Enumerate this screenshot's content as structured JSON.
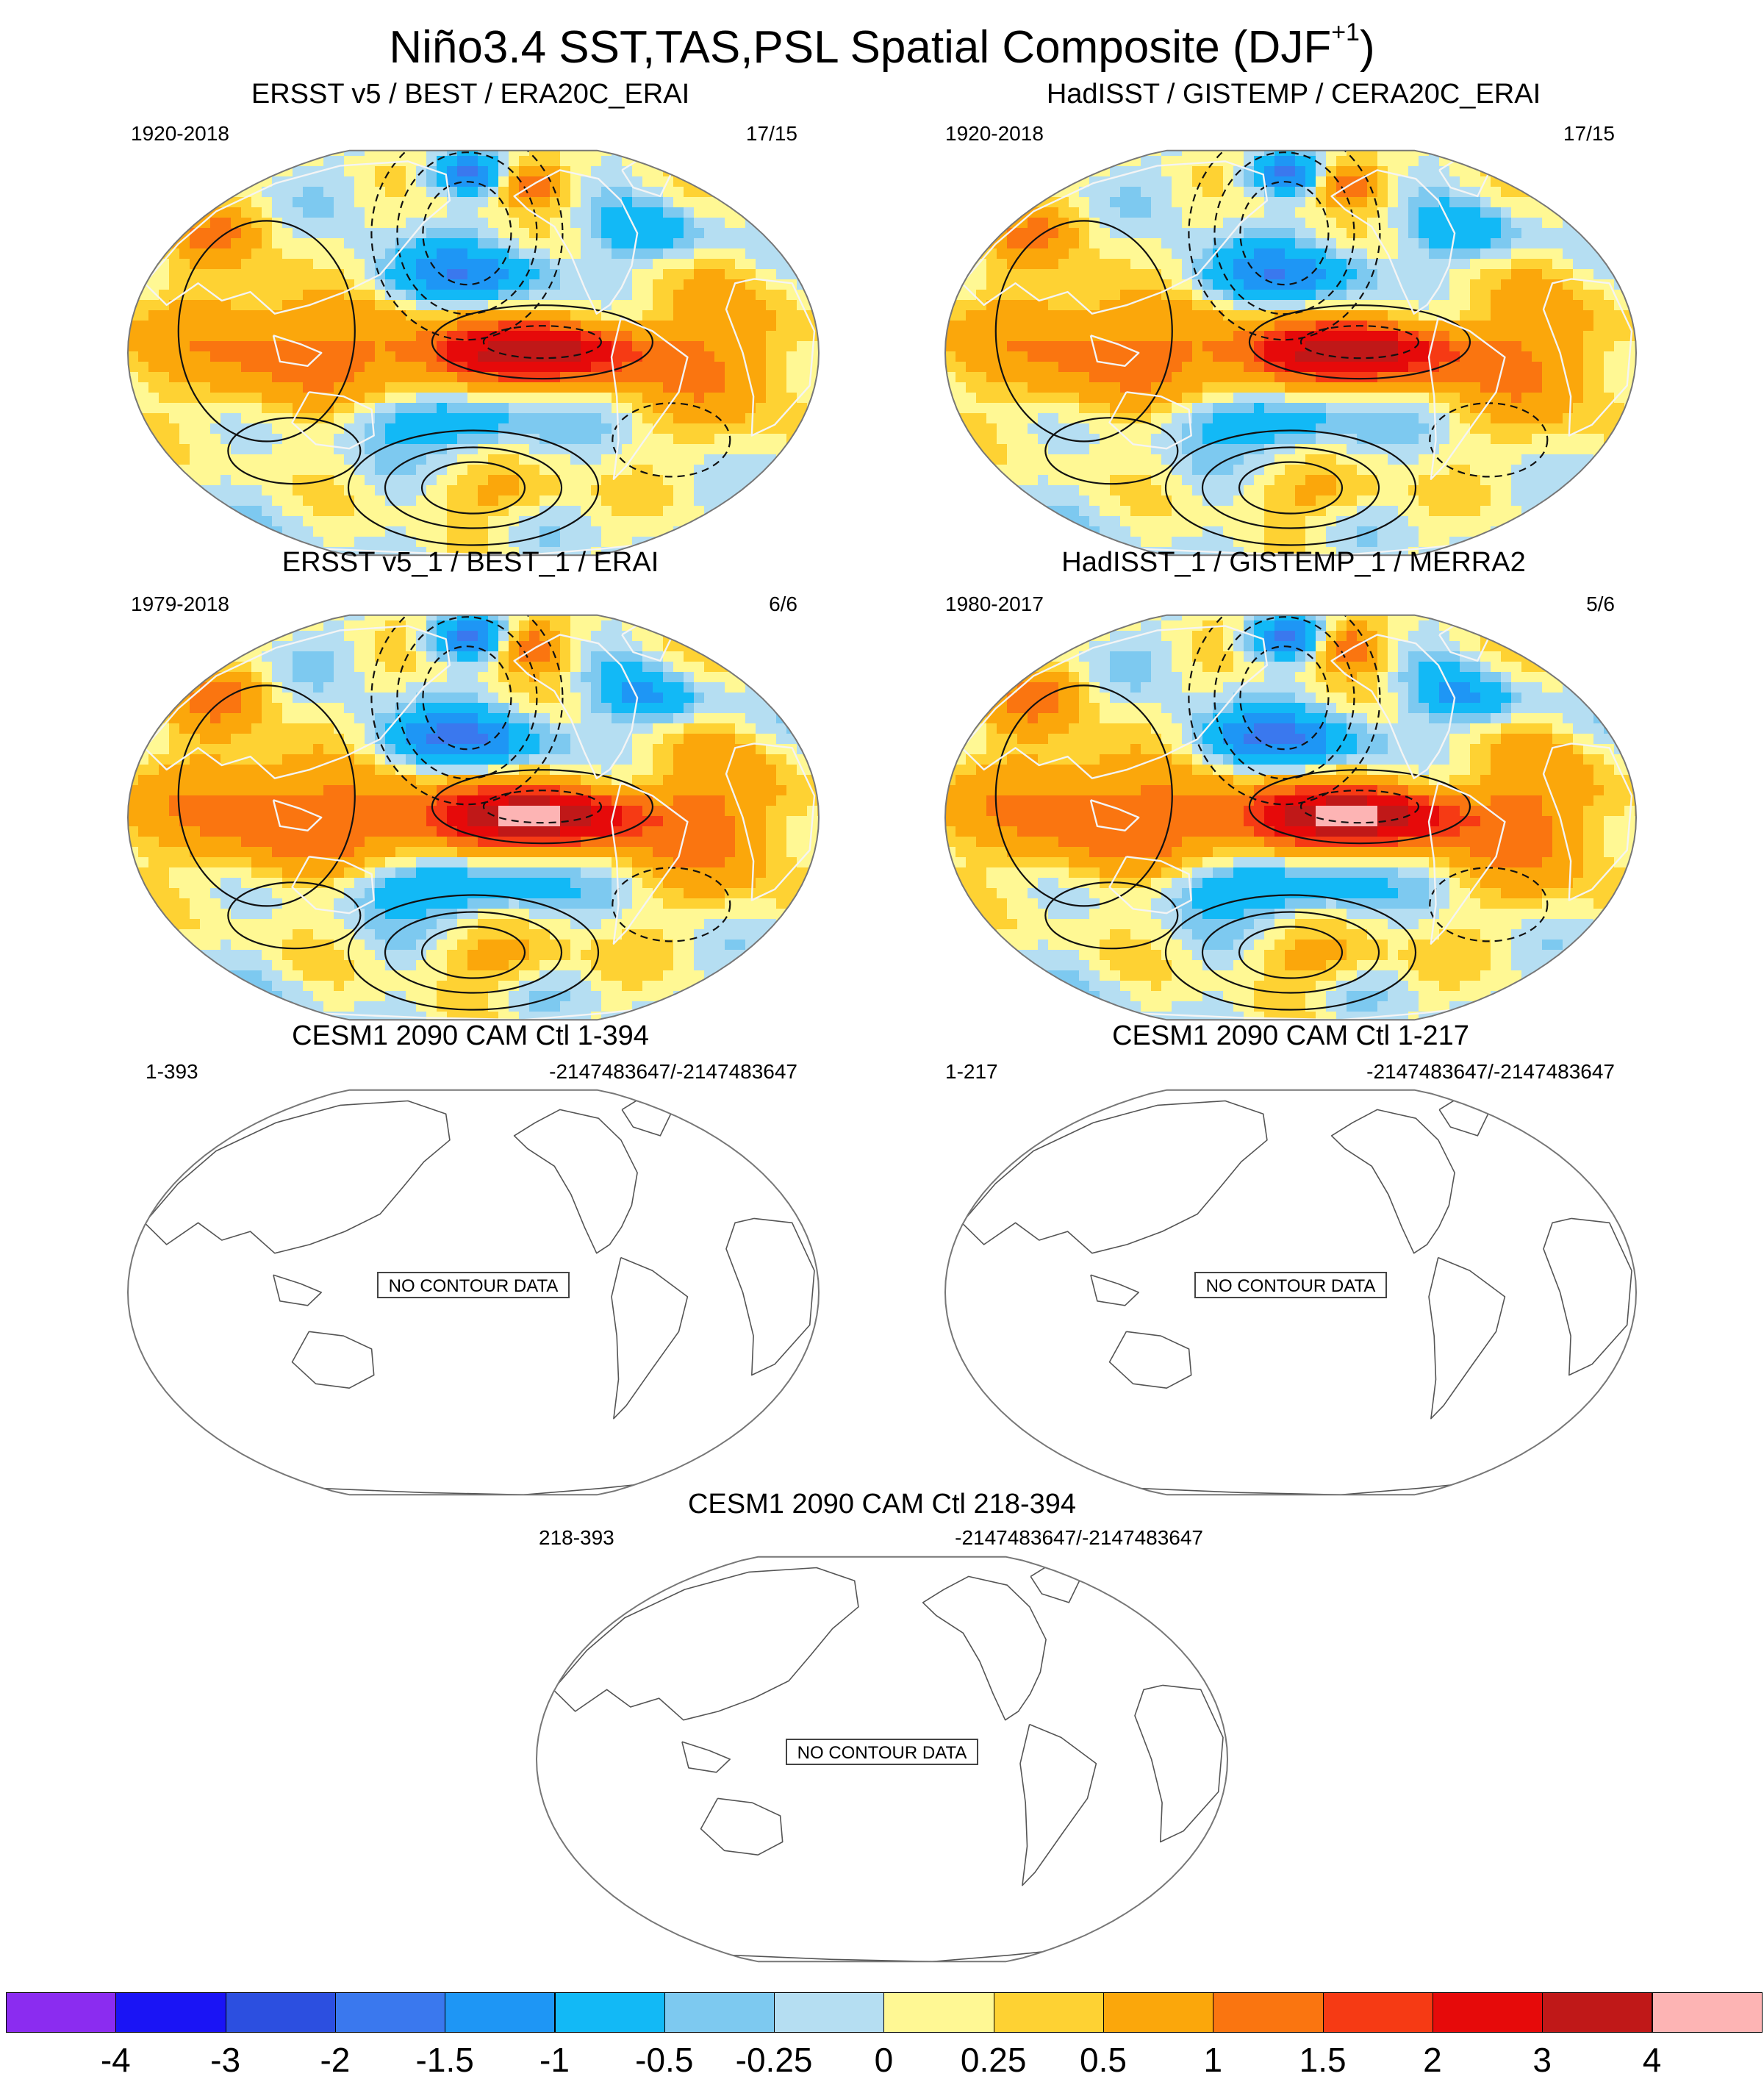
{
  "title": "Niño3.4 SST,TAS,PSL Spatial Composite (DJF",
  "title_sup": "+1",
  "title_close": ")",
  "panels": [
    {
      "title": "ERSST v5 / BEST / ERA20C_ERAI",
      "left_label": "1920-2018",
      "right_label": "17/15",
      "filled": true,
      "strength": 1.0
    },
    {
      "title": "HadISST / GISTEMP / CERA20C_ERAI",
      "left_label": "1920-2018",
      "right_label": "17/15",
      "filled": true,
      "strength": 1.0
    },
    {
      "title": "ERSST v5_1 / BEST_1 / ERAI",
      "left_label": "1979-2018",
      "right_label": "6/6",
      "filled": true,
      "strength": 1.15
    },
    {
      "title": "HadISST_1 / GISTEMP_1 / MERRA2",
      "left_label": "1980-2017",
      "right_label": "5/6",
      "filled": true,
      "strength": 1.15
    },
    {
      "title": "CESM1 2090 CAM Ctl 1-394",
      "left_label": "1-393",
      "right_label": "-2147483647/-2147483647",
      "filled": false,
      "message": "NO CONTOUR DATA"
    },
    {
      "title": "CESM1 2090 CAM Ctl 1-217",
      "left_label": "1-217",
      "right_label": "-2147483647/-2147483647",
      "filled": false,
      "message": "NO CONTOUR DATA"
    },
    {
      "title": "CESM1 2090 CAM Ctl 218-394",
      "left_label": "218-393",
      "right_label": "-2147483647/-2147483647",
      "filled": false,
      "message": "NO CONTOUR DATA"
    }
  ],
  "colorbar": {
    "levels": [
      "-4",
      "-3",
      "-2",
      "-1.5",
      "-1",
      "-0.5",
      "-0.25",
      "0",
      "0.25",
      "0.5",
      "1",
      "1.5",
      "2",
      "3",
      "4"
    ],
    "colors": [
      "#8b2cf0",
      "#1a14f5",
      "#2c4fe0",
      "#3a78ee",
      "#1e96f5",
      "#12b9f6",
      "#7dc9f0",
      "#b5def2",
      "#fff894",
      "#fed233",
      "#fba70b",
      "#fa7510",
      "#f63a14",
      "#e60a0a",
      "#c01818",
      "#fdb4b4"
    ]
  }
}
